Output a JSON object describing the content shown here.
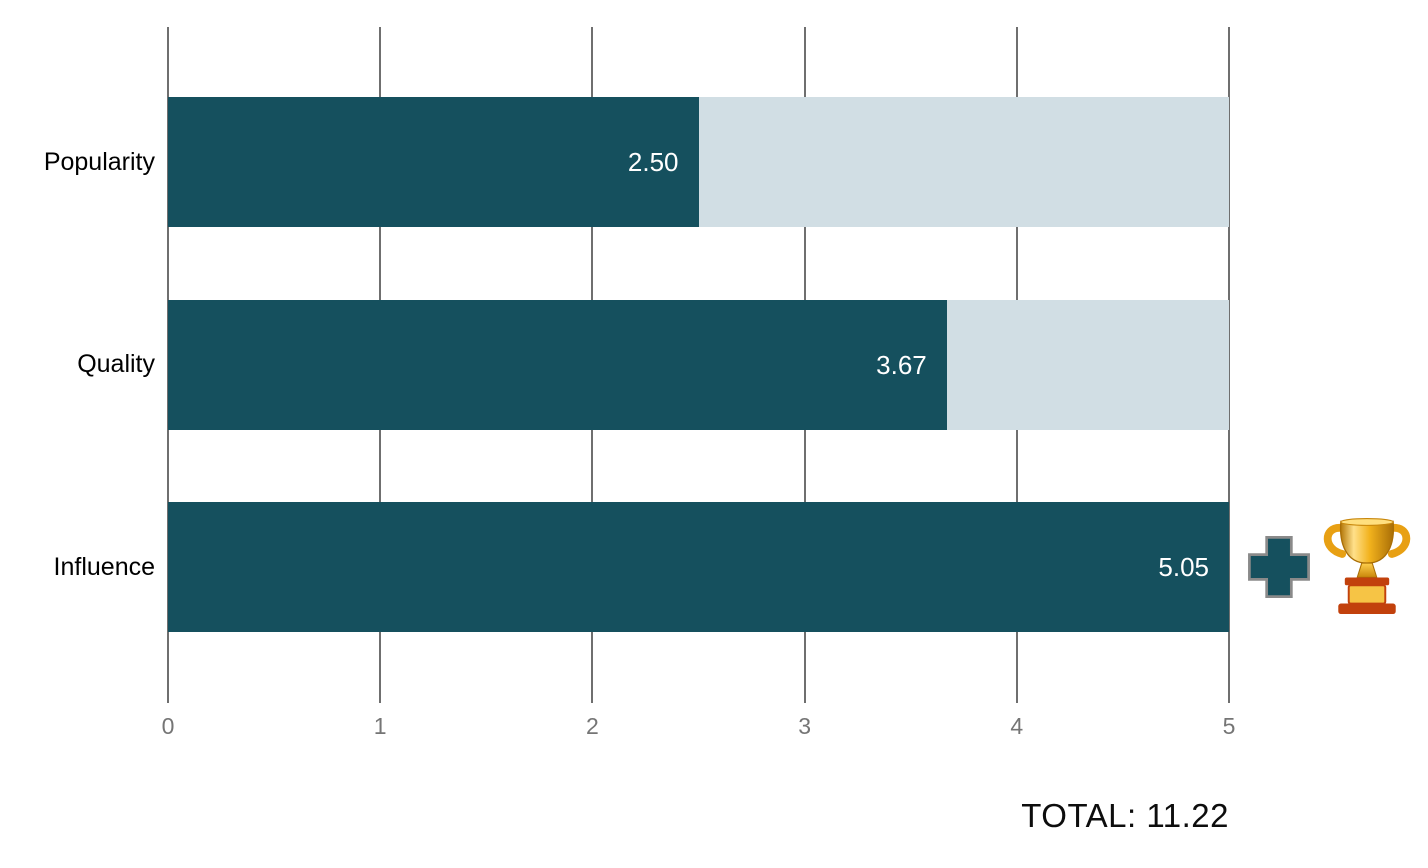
{
  "chart_data": {
    "type": "bar",
    "orientation": "horizontal",
    "categories": [
      "Popularity",
      "Quality",
      "Influence"
    ],
    "values": [
      2.5,
      3.67,
      5.05
    ],
    "value_labels": [
      "2.50",
      "3.67",
      "5.05"
    ],
    "xlabel": "",
    "ylabel": "",
    "xlim": [
      0,
      5
    ],
    "x_ticks": [
      "0",
      "1",
      "2",
      "3",
      "4",
      "5"
    ],
    "grid": true,
    "legend": "none",
    "colors": {
      "bar": "#15505e",
      "track": "#d1dee4",
      "gridline": "#6f6f6f",
      "tick_label": "#757575",
      "value_label": "#ffffff",
      "category_label": "#000000"
    }
  },
  "annotations": {
    "bonus_icons": [
      {
        "name": "plus-icon",
        "glyph": "+"
      },
      {
        "name": "trophy-icon",
        "glyph": "🏆"
      }
    ],
    "total_text": "TOTAL: 11.22"
  }
}
